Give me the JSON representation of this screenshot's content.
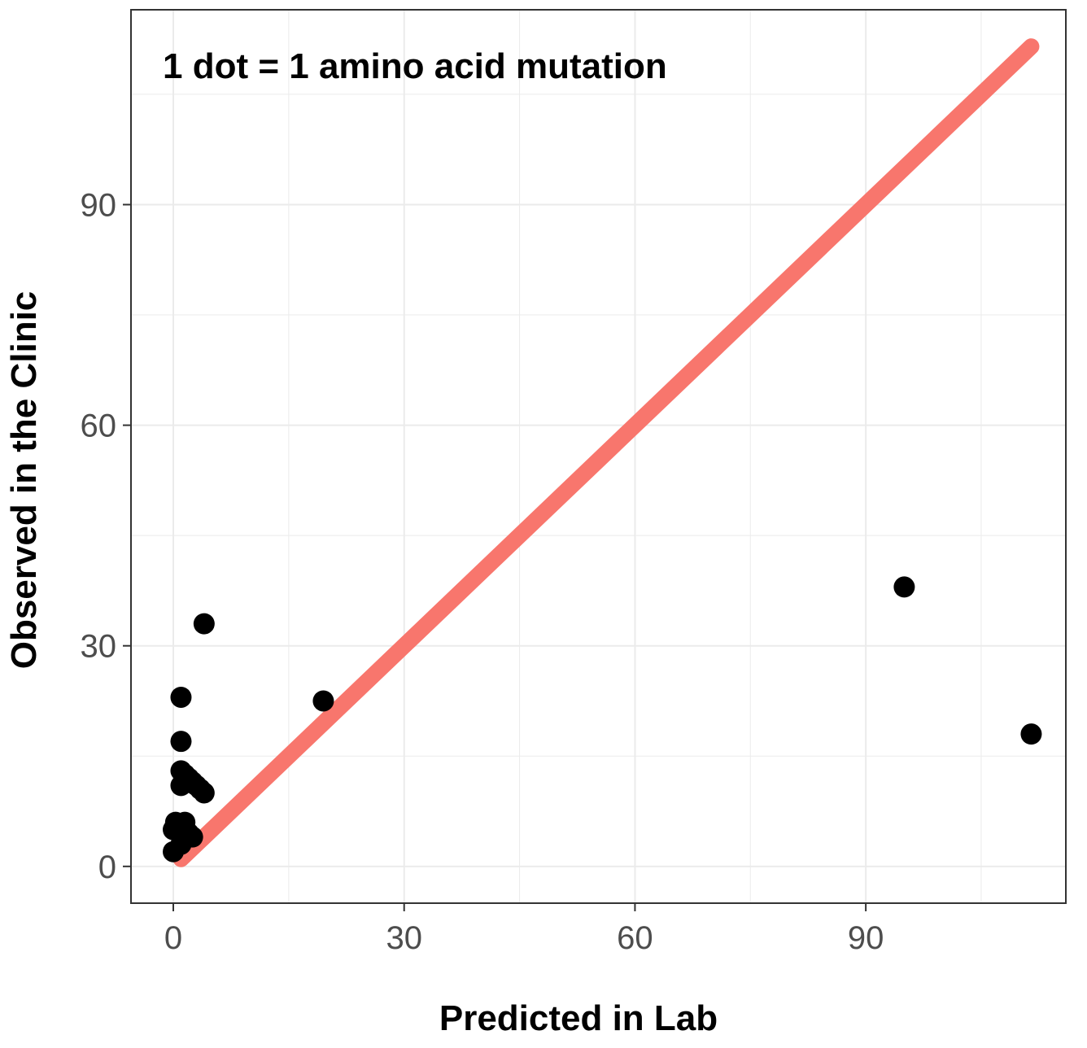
{
  "chart_data": {
    "type": "scatter",
    "title": "",
    "annotation": "1 dot = 1 amino acid mutation",
    "xlabel": "Predicted in Lab",
    "ylabel": "Observed in the Clinic",
    "xlim": [
      -5.5,
      116
    ],
    "ylim": [
      -5,
      116.5
    ],
    "xticks": [
      0,
      30,
      60,
      90
    ],
    "yticks": [
      0,
      30,
      60,
      90
    ],
    "x_tick_labels": [
      "0",
      "30",
      "60",
      "90"
    ],
    "y_tick_labels": [
      "0",
      "30",
      "60",
      "90"
    ],
    "grid": true,
    "reference_line": {
      "slope": 1,
      "intercept": 0,
      "from": 1,
      "to": 111.5,
      "color": "#F8766D"
    },
    "point_color": "#000000",
    "points": [
      {
        "x": 0,
        "y": 2
      },
      {
        "x": 0,
        "y": 5
      },
      {
        "x": 0.3,
        "y": 6
      },
      {
        "x": 1,
        "y": 5
      },
      {
        "x": 1,
        "y": 3
      },
      {
        "x": 1.5,
        "y": 6
      },
      {
        "x": 1,
        "y": 11
      },
      {
        "x": 1,
        "y": 13
      },
      {
        "x": 1.5,
        "y": 12.5
      },
      {
        "x": 1,
        "y": 17
      },
      {
        "x": 1,
        "y": 23
      },
      {
        "x": 2,
        "y": 12
      },
      {
        "x": 2.5,
        "y": 11.5
      },
      {
        "x": 3,
        "y": 11
      },
      {
        "x": 3.5,
        "y": 10.5
      },
      {
        "x": 4,
        "y": 10
      },
      {
        "x": 2,
        "y": 4.5
      },
      {
        "x": 2.5,
        "y": 4
      },
      {
        "x": 4,
        "y": 33
      },
      {
        "x": 19.5,
        "y": 22.5
      },
      {
        "x": 95,
        "y": 38
      },
      {
        "x": 111.5,
        "y": 18
      }
    ]
  }
}
